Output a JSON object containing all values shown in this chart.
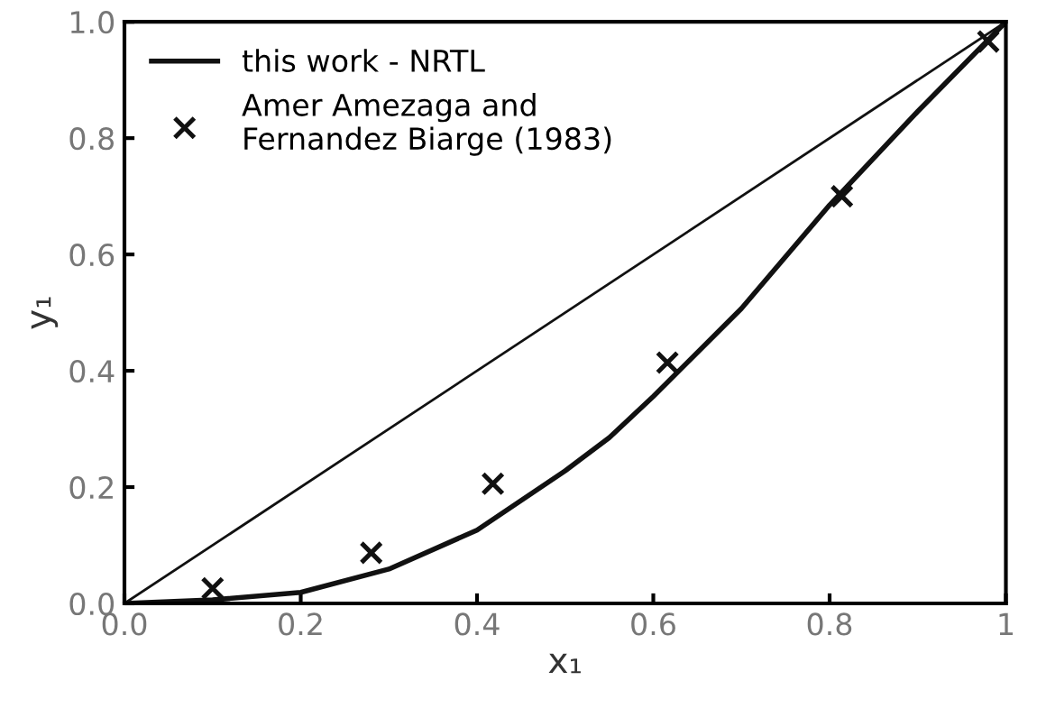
{
  "chart_data": {
    "type": "line",
    "xlabel": "x₁",
    "ylabel": "y₁",
    "xlim": [
      0,
      1
    ],
    "ylim": [
      0,
      1
    ],
    "xticks": [
      {
        "value": 0,
        "label": "0.0"
      },
      0.2,
      0.4,
      0.6,
      0.8,
      {
        "value": 1,
        "label": "1"
      }
    ],
    "yticks": [
      {
        "value": 0,
        "label": "0.0"
      },
      0.2,
      0.4,
      0.6,
      0.8,
      {
        "value": 1,
        "label": "1.0"
      }
    ],
    "grid": false,
    "legend": "top left",
    "series": [
      {
        "color": "#111111",
        "x": [
          0,
          1
        ],
        "values": [
          0,
          1
        ]
      },
      {
        "type": "line",
        "name": "this work - NRTL",
        "color": "#111111",
        "x": [
          0,
          0.1,
          0.2,
          0.3,
          0.4,
          0.5,
          0.55,
          0.6,
          0.7,
          0.8,
          0.9,
          1
        ],
        "values": [
          0,
          0.006,
          0.019,
          0.059,
          0.126,
          0.228,
          0.285,
          0.356,
          0.507,
          0.685,
          0.846,
          1
        ]
      },
      {
        "type": "scatter",
        "name": "Amer Amezaga and\nFernandez Biarge (1983)",
        "color": "#111111",
        "marker": "cross",
        "x": [
          0.1,
          0.28,
          0.418,
          0.616,
          0.814,
          0.98
        ],
        "values": [
          0.026,
          0.087,
          0.206,
          0.414,
          0.7,
          0.966
        ]
      }
    ]
  }
}
